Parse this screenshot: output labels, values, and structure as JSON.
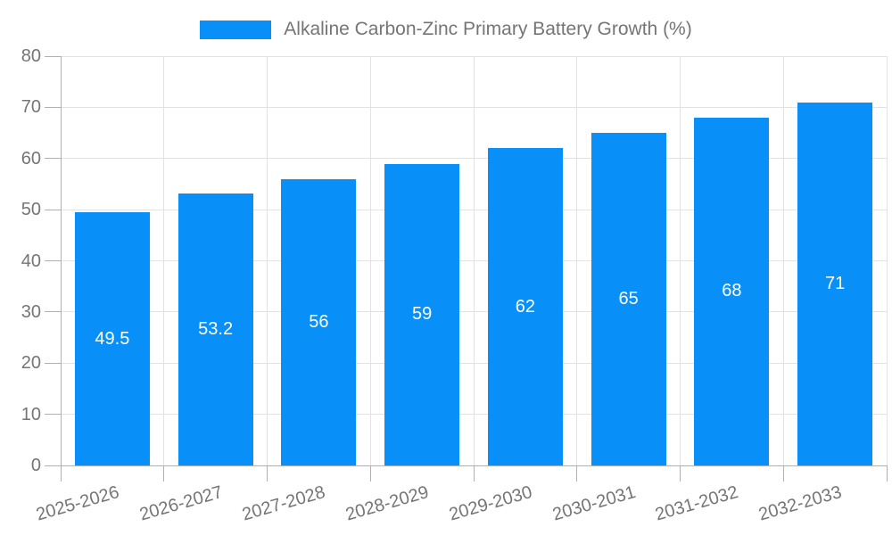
{
  "legend": {
    "swatch_color": "#0890F8"
  },
  "colors": {
    "bar": "#0890F8",
    "gridline": "#e2e2e2",
    "axis": "#b0b0b0",
    "text": "#757575",
    "bar_label_text": "#ffffff",
    "background": "#ffffff"
  },
  "chart_data": {
    "type": "bar",
    "title": "Alkaline Carbon-Zinc Primary Battery Growth (%)",
    "categories": [
      "2025-2026",
      "2026-2027",
      "2027-2028",
      "2028-2029",
      "2029-2030",
      "2030-2031",
      "2031-2032",
      "2032-2033"
    ],
    "values": [
      49.5,
      53.2,
      56,
      59,
      62,
      65,
      68,
      71
    ],
    "value_labels": [
      "49.5",
      "53.2",
      "56",
      "59",
      "62",
      "65",
      "68",
      "71"
    ],
    "xlabel": "",
    "ylabel": "",
    "ylim": [
      0,
      80
    ],
    "y_ticks": [
      0,
      10,
      20,
      30,
      40,
      50,
      60,
      70,
      80
    ],
    "grid": "horizontal and vertical category boundaries",
    "legend_position": "top-center",
    "bar_label_position": "center"
  }
}
